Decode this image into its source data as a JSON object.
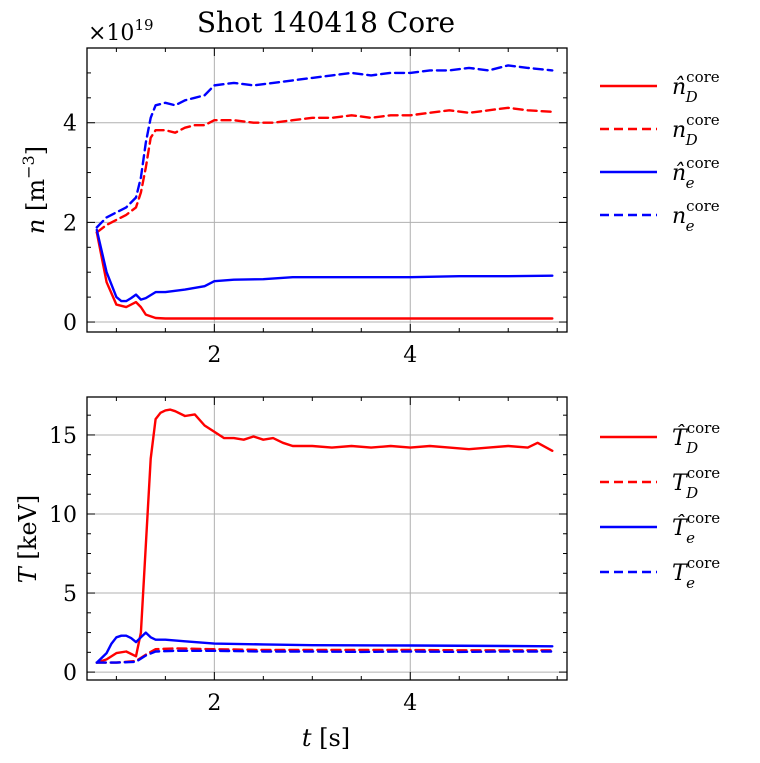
{
  "chart_data": [
    {
      "type": "line",
      "title": "Shot 140418 Core",
      "xlabel": "",
      "ylabel_sym": "n",
      "ylabel_unit": "[m",
      "ylabel_exp": "−3",
      "ylabel_close": "]",
      "offset_base": "×10",
      "offset_exp": "19",
      "xlim": [
        0.7,
        5.6
      ],
      "ylim": [
        -0.2,
        5.5
      ],
      "xticks": [
        2,
        4
      ],
      "xtick_labels": [
        "2",
        "4"
      ],
      "yticks": [
        0,
        2,
        4
      ],
      "ytick_labels": [
        "0",
        "2",
        "4"
      ],
      "grid": true,
      "legend": "right",
      "series": [
        {
          "name": "n̂_D^core",
          "label_base": "n̂",
          "label_sub": "D",
          "label_sup": "core",
          "color": "#ff0000",
          "dash": "solid",
          "x": [
            0.8,
            0.9,
            1.0,
            1.1,
            1.2,
            1.25,
            1.3,
            1.4,
            1.5,
            2.0,
            3.0,
            4.0,
            5.0,
            5.45
          ],
          "y": [
            1.8,
            0.8,
            0.35,
            0.3,
            0.4,
            0.3,
            0.15,
            0.08,
            0.07,
            0.07,
            0.07,
            0.07,
            0.07,
            0.07
          ]
        },
        {
          "name": "n_D^core",
          "label_base": "n",
          "label_sub": "D",
          "label_sup": "core",
          "color": "#ff0000",
          "dash": "dashed",
          "x": [
            0.8,
            0.9,
            1.0,
            1.1,
            1.2,
            1.25,
            1.3,
            1.35,
            1.4,
            1.5,
            1.6,
            1.7,
            1.8,
            1.9,
            2.0,
            2.2,
            2.4,
            2.6,
            2.8,
            3.0,
            3.2,
            3.4,
            3.6,
            3.8,
            4.0,
            4.2,
            4.4,
            4.6,
            4.8,
            5.0,
            5.2,
            5.45
          ],
          "y": [
            1.8,
            1.95,
            2.05,
            2.15,
            2.3,
            2.6,
            3.1,
            3.7,
            3.85,
            3.85,
            3.8,
            3.9,
            3.95,
            3.95,
            4.05,
            4.05,
            4.0,
            4.0,
            4.05,
            4.1,
            4.1,
            4.15,
            4.1,
            4.15,
            4.15,
            4.2,
            4.25,
            4.2,
            4.25,
            4.3,
            4.25,
            4.22
          ]
        },
        {
          "name": "n̂_e^core",
          "label_base": "n̂",
          "label_sub": "e",
          "label_sup": "core",
          "color": "#0000ff",
          "dash": "solid",
          "x": [
            0.8,
            0.9,
            1.0,
            1.05,
            1.1,
            1.15,
            1.2,
            1.25,
            1.3,
            1.4,
            1.5,
            1.7,
            1.9,
            2.0,
            2.2,
            2.5,
            2.8,
            3.0,
            3.5,
            4.0,
            4.5,
            5.0,
            5.45
          ],
          "y": [
            1.85,
            1.0,
            0.5,
            0.42,
            0.42,
            0.48,
            0.55,
            0.45,
            0.48,
            0.6,
            0.6,
            0.65,
            0.72,
            0.82,
            0.85,
            0.86,
            0.9,
            0.9,
            0.9,
            0.9,
            0.92,
            0.92,
            0.93
          ]
        },
        {
          "name": "n_e^core",
          "label_base": "n",
          "label_sub": "e",
          "label_sup": "core",
          "color": "#0000ff",
          "dash": "dashed",
          "x": [
            0.8,
            0.9,
            1.0,
            1.1,
            1.2,
            1.25,
            1.3,
            1.35,
            1.4,
            1.5,
            1.6,
            1.7,
            1.8,
            1.9,
            2.0,
            2.2,
            2.4,
            2.6,
            2.8,
            3.0,
            3.2,
            3.4,
            3.6,
            3.8,
            4.0,
            4.2,
            4.4,
            4.6,
            4.8,
            5.0,
            5.2,
            5.45
          ],
          "y": [
            1.9,
            2.1,
            2.2,
            2.3,
            2.5,
            2.9,
            3.6,
            4.1,
            4.35,
            4.4,
            4.35,
            4.45,
            4.5,
            4.55,
            4.75,
            4.8,
            4.75,
            4.8,
            4.85,
            4.9,
            4.95,
            5.0,
            4.95,
            5.0,
            5.0,
            5.05,
            5.05,
            5.1,
            5.05,
            5.15,
            5.1,
            5.05
          ]
        }
      ]
    },
    {
      "type": "line",
      "title": "",
      "xlabel_sym": "t",
      "xlabel_unit": "[s]",
      "ylabel_sym": "T",
      "ylabel_unit": "[keV]",
      "xlim": [
        0.7,
        5.6
      ],
      "ylim": [
        -0.5,
        17.4
      ],
      "xticks": [
        2,
        4
      ],
      "xtick_labels": [
        "2",
        "4"
      ],
      "yticks": [
        0,
        5,
        10,
        15
      ],
      "ytick_labels": [
        "0",
        "5",
        "10",
        "15"
      ],
      "grid": true,
      "legend": "right",
      "series": [
        {
          "name": "T̂_D^core",
          "label_base": "T̂",
          "label_sub": "D",
          "label_sup": "core",
          "color": "#ff0000",
          "dash": "solid",
          "x": [
            0.8,
            0.9,
            1.0,
            1.1,
            1.2,
            1.25,
            1.3,
            1.35,
            1.4,
            1.45,
            1.5,
            1.55,
            1.6,
            1.7,
            1.8,
            1.9,
            2.0,
            2.1,
            2.2,
            2.3,
            2.4,
            2.5,
            2.6,
            2.7,
            2.8,
            3.0,
            3.2,
            3.4,
            3.6,
            3.8,
            4.0,
            4.2,
            4.4,
            4.6,
            4.8,
            5.0,
            5.2,
            5.3,
            5.45
          ],
          "y": [
            0.6,
            0.8,
            1.2,
            1.3,
            1.0,
            2.5,
            8.0,
            13.5,
            16.0,
            16.4,
            16.55,
            16.6,
            16.5,
            16.2,
            16.3,
            15.6,
            15.2,
            14.8,
            14.8,
            14.7,
            14.9,
            14.7,
            14.8,
            14.5,
            14.3,
            14.3,
            14.2,
            14.3,
            14.2,
            14.3,
            14.2,
            14.3,
            14.2,
            14.1,
            14.2,
            14.3,
            14.2,
            14.5,
            14.0
          ]
        },
        {
          "name": "T_D^core",
          "label_base": "T",
          "label_sub": "D",
          "label_sup": "core",
          "color": "#ff0000",
          "dash": "dashed",
          "x": [
            0.8,
            1.0,
            1.2,
            1.3,
            1.4,
            1.6,
            2.0,
            2.5,
            3.0,
            3.5,
            4.0,
            4.5,
            5.0,
            5.45
          ],
          "y": [
            0.6,
            0.6,
            0.7,
            1.1,
            1.45,
            1.5,
            1.45,
            1.4,
            1.4,
            1.4,
            1.4,
            1.38,
            1.38,
            1.38
          ]
        },
        {
          "name": "T̂_e^core",
          "label_base": "T̂",
          "label_sub": "e",
          "label_sup": "core",
          "color": "#0000ff",
          "dash": "solid",
          "x": [
            0.8,
            0.9,
            0.95,
            1.0,
            1.05,
            1.1,
            1.15,
            1.2,
            1.25,
            1.3,
            1.35,
            1.4,
            1.5,
            1.7,
            2.0,
            2.5,
            3.0,
            4.0,
            5.0,
            5.45
          ],
          "y": [
            0.6,
            1.2,
            1.8,
            2.2,
            2.3,
            2.3,
            2.15,
            1.9,
            2.2,
            2.5,
            2.2,
            2.05,
            2.05,
            1.95,
            1.8,
            1.75,
            1.7,
            1.68,
            1.65,
            1.63
          ]
        },
        {
          "name": "T_e^core",
          "label_base": "T",
          "label_sub": "e",
          "label_sup": "core",
          "color": "#0000ff",
          "dash": "dashed",
          "x": [
            0.8,
            1.0,
            1.2,
            1.3,
            1.4,
            1.6,
            2.0,
            2.5,
            3.0,
            3.5,
            4.0,
            4.5,
            5.0,
            5.45
          ],
          "y": [
            0.6,
            0.6,
            0.65,
            1.05,
            1.3,
            1.35,
            1.35,
            1.3,
            1.3,
            1.28,
            1.3,
            1.28,
            1.3,
            1.3
          ]
        }
      ]
    }
  ]
}
